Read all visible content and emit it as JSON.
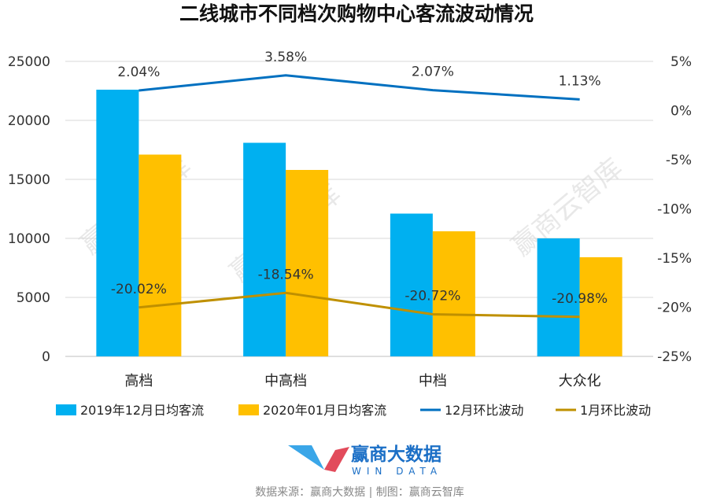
{
  "chart_data": {
    "type": "bar",
    "title": "二线城市不同档次购物中心客流波动情况",
    "categories": [
      "高档",
      "中高档",
      "中档",
      "大众化"
    ],
    "series": [
      {
        "name": "2019年12月日均客流",
        "type": "bar",
        "axis": "left",
        "color": "#00b0f0",
        "values": [
          22600,
          18100,
          12100,
          10000
        ]
      },
      {
        "name": "2020年01月日均客流",
        "type": "bar",
        "axis": "left",
        "color": "#ffc000",
        "values": [
          17100,
          15800,
          10600,
          8400
        ]
      },
      {
        "name": "12月环比波动",
        "type": "line",
        "axis": "right",
        "color": "#0070c0",
        "values": [
          2.04,
          3.58,
          2.07,
          1.13
        ],
        "labels": [
          "2.04%",
          "3.58%",
          "2.07%",
          "1.13%"
        ]
      },
      {
        "name": "1月环比波动",
        "type": "line",
        "axis": "right",
        "color": "#bf9000",
        "values": [
          -20.02,
          -18.54,
          -20.72,
          -20.98
        ],
        "labels": [
          "-20.02%",
          "-18.54%",
          "-20.72%",
          "-20.98%"
        ]
      }
    ],
    "y_left": {
      "min": 0,
      "max": 25000,
      "ticks": [
        "0",
        "5000",
        "10000",
        "15000",
        "20000",
        "25000"
      ]
    },
    "y_right": {
      "min": -25,
      "max": 5,
      "ticks": [
        "-25%",
        "-20%",
        "-15%",
        "-10%",
        "-5%",
        "0%",
        "5%"
      ]
    },
    "grid": true,
    "legend_position": "bottom"
  },
  "watermark": "赢商云智库",
  "logo": {
    "name_cn": "赢商大数据",
    "name_en": "WIN DATA"
  },
  "footer": "数据来源：赢商大数据 | 制图：赢商云智库"
}
